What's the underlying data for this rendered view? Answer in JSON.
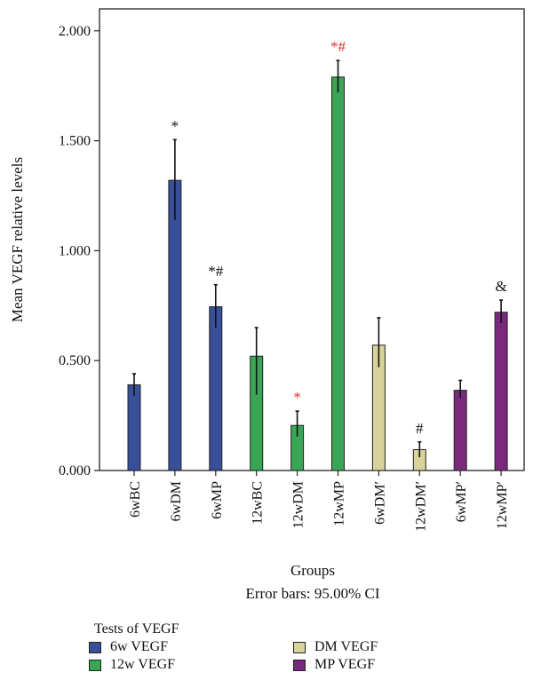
{
  "chart_data": {
    "type": "bar",
    "ylabel": "Mean VEGF relative levels",
    "xlabel": "Groups",
    "subtitle": "Error bars: 95.00% CI",
    "ylim": [
      0,
      2.1
    ],
    "yticks": [
      "0.000",
      "0.500",
      "1.000",
      "1.500",
      "2.000"
    ],
    "ytick_values": [
      0,
      0.5,
      1.0,
      1.5,
      2.0
    ],
    "categories": [
      "6wBC",
      "6wDM",
      "6wMP",
      "12wBC",
      "12wDM",
      "12wMP",
      "6wDM′",
      "12wDM′",
      "6wMP′",
      "12wMP′"
    ],
    "series": [
      {
        "name": "6w VEGF",
        "color": "#3a4f9c",
        "values": [
          0.39,
          1.32,
          0.745,
          null,
          null,
          null,
          null,
          null,
          null,
          null
        ]
      },
      {
        "name": "12w VEGF",
        "color": "#3aa655",
        "values": [
          null,
          null,
          null,
          0.52,
          0.205,
          1.79,
          null,
          null,
          null,
          null
        ]
      },
      {
        "name": "DM VEGF",
        "color": "#d8d39a",
        "values": [
          null,
          null,
          null,
          null,
          null,
          null,
          0.57,
          0.095,
          null,
          null
        ]
      },
      {
        "name": "MP VEGF",
        "color": "#7a2a7c",
        "values": [
          null,
          null,
          null,
          null,
          null,
          null,
          null,
          null,
          0.365,
          0.72
        ]
      }
    ],
    "error_low": [
      0.34,
      1.14,
      0.65,
      0.345,
      0.155,
      1.72,
      0.47,
      0.06,
      0.33,
      0.67
    ],
    "error_high": [
      0.44,
      1.505,
      0.845,
      0.65,
      0.27,
      1.865,
      0.695,
      0.13,
      0.41,
      0.775
    ],
    "annotations": [
      {
        "category": "6wDM",
        "text": "*",
        "color": "#111111"
      },
      {
        "category": "6wMP",
        "text": "*#",
        "color": "#111111"
      },
      {
        "category": "12wDM",
        "text": "*",
        "color": "#e03030"
      },
      {
        "category": "12wMP",
        "text": "*#",
        "color": "#e03030"
      },
      {
        "category": "12wDM′",
        "text": "#",
        "color": "#111111"
      },
      {
        "category": "12wMP′",
        "text": "&",
        "color": "#111111"
      }
    ]
  },
  "legend": {
    "title": "Tests of VEGF",
    "items": [
      {
        "label": "6w VEGF",
        "color": "#3a4f9c"
      },
      {
        "label": "DM VEGF",
        "color": "#d8d39a"
      },
      {
        "label": "12w VEGF",
        "color": "#3aa655"
      },
      {
        "label": "MP VEGF",
        "color": "#7a2a7c"
      }
    ]
  }
}
